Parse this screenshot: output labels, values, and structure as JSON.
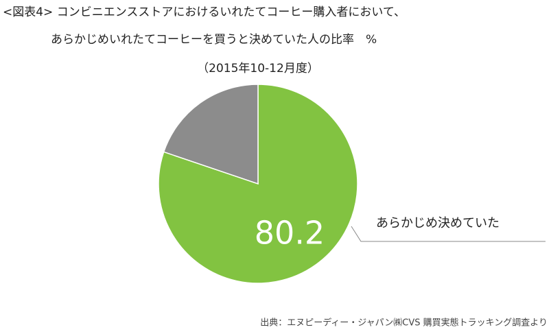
{
  "chart_data": {
    "type": "pie",
    "title": [
      "<図表4> コンビニエンスストアにおけるいれたてコーヒー購入者において、",
      "あらかじめいれたてコーヒーを買うと決めていた人の比率　%",
      "（2015年10-12月度）"
    ],
    "categories": [
      "あらかじめ決めていた",
      null
    ],
    "values": [
      80.2,
      19.8
    ],
    "colors": [
      "#82c341",
      "#8c8c8c"
    ],
    "source": "出典：エヌピーディー・ジャパン㈱CVS 購買実態トラッキング調査より"
  }
}
